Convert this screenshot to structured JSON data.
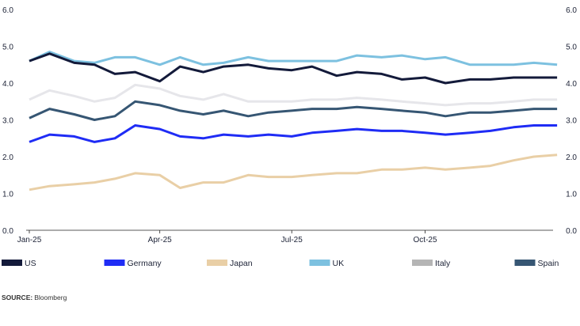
{
  "chart_data": {
    "type": "line",
    "title": "",
    "xlabel": "",
    "ylabel": "",
    "ylim": [
      0,
      6
    ],
    "yticks": [
      "0.0",
      "1.0",
      "2.0",
      "3.0",
      "4.0",
      "5.0",
      "6.0"
    ],
    "xticks": [
      {
        "label": "Jan-25",
        "date": "2025-01-01"
      },
      {
        "label": "Apr-25",
        "date": "2025-04-01"
      },
      {
        "label": "Jul-25",
        "date": "2025-07-01"
      },
      {
        "label": "Oct-25",
        "date": "2025-10-01"
      }
    ],
    "grid": false,
    "legend_position": "bottom",
    "x": [
      "2025-01-01",
      "2025-01-15",
      "2025-02-01",
      "2025-02-15",
      "2025-03-01",
      "2025-03-15",
      "2025-04-01",
      "2025-04-15",
      "2025-05-01",
      "2025-05-15",
      "2025-06-01",
      "2025-06-15",
      "2025-07-01",
      "2025-07-15",
      "2025-08-01",
      "2025-08-15",
      "2025-09-01",
      "2025-09-15",
      "2025-10-01",
      "2025-10-15",
      "2025-11-01",
      "2025-11-15",
      "2025-12-01",
      "2025-12-15",
      "2025-12-31"
    ],
    "series": [
      {
        "name": "US",
        "color": "#131a3a",
        "values": [
          4.6,
          4.8,
          4.55,
          4.5,
          4.25,
          4.3,
          4.05,
          4.45,
          4.3,
          4.45,
          4.5,
          4.4,
          4.35,
          4.45,
          4.2,
          4.3,
          4.25,
          4.1,
          4.15,
          4.0,
          4.1,
          4.1,
          4.15,
          4.15,
          4.15
        ]
      },
      {
        "name": "Germany",
        "color": "#1f2cf5",
        "values": [
          2.4,
          2.6,
          2.55,
          2.4,
          2.5,
          2.85,
          2.75,
          2.55,
          2.5,
          2.6,
          2.55,
          2.6,
          2.55,
          2.65,
          2.7,
          2.75,
          2.7,
          2.7,
          2.65,
          2.6,
          2.65,
          2.7,
          2.8,
          2.85,
          2.85
        ]
      },
      {
        "name": "Japan",
        "color": "#e9cfa6",
        "values": [
          1.1,
          1.2,
          1.25,
          1.3,
          1.4,
          1.55,
          1.5,
          1.15,
          1.3,
          1.3,
          1.5,
          1.45,
          1.45,
          1.5,
          1.55,
          1.55,
          1.65,
          1.65,
          1.7,
          1.65,
          1.7,
          1.75,
          1.9,
          2.0,
          2.05
        ]
      },
      {
        "name": "UK",
        "color": "#7dc1e0",
        "values": [
          4.6,
          4.85,
          4.6,
          4.55,
          4.7,
          4.7,
          4.5,
          4.7,
          4.5,
          4.55,
          4.7,
          4.6,
          4.6,
          4.6,
          4.6,
          4.75,
          4.7,
          4.75,
          4.65,
          4.7,
          4.5,
          4.5,
          4.5,
          4.55,
          4.5
        ]
      },
      {
        "name": "Italy",
        "color": "#e6e6ea",
        "legend_color": "#b5b5b5",
        "values": [
          3.55,
          3.8,
          3.65,
          3.5,
          3.6,
          3.95,
          3.85,
          3.65,
          3.55,
          3.7,
          3.5,
          3.5,
          3.5,
          3.55,
          3.55,
          3.6,
          3.55,
          3.5,
          3.45,
          3.4,
          3.45,
          3.45,
          3.5,
          3.55,
          3.55
        ]
      },
      {
        "name": "Spain",
        "color": "#365673",
        "values": [
          3.05,
          3.3,
          3.15,
          3.0,
          3.1,
          3.5,
          3.4,
          3.25,
          3.15,
          3.25,
          3.1,
          3.2,
          3.25,
          3.3,
          3.3,
          3.35,
          3.3,
          3.25,
          3.2,
          3.1,
          3.2,
          3.2,
          3.25,
          3.3,
          3.3
        ]
      }
    ]
  },
  "source": {
    "label": "SOURCE:",
    "text": "Bloomberg"
  }
}
